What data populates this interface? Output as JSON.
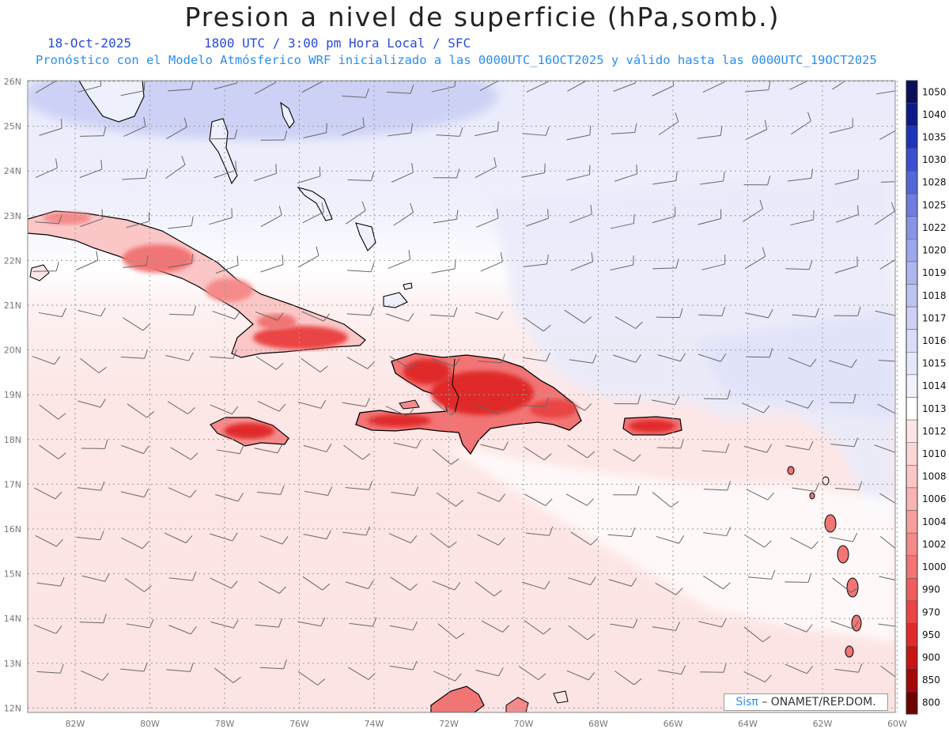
{
  "header": {
    "title": "Presion a nivel de superficie (hPa,somb.)",
    "date": "18-Oct-2025",
    "time_info": "1800 UTC / 3:00 pm Hora Local / SFC",
    "description": "Pronóstico con el Modelo Atmósferico WRF inicializado a las 0000UTC_16OCT2025 y válido hasta las  0000UTC_19OCT2025"
  },
  "map": {
    "lat_labels": [
      "26N",
      "25N",
      "24N",
      "23N",
      "22N",
      "21N",
      "20N",
      "19N",
      "18N",
      "17N",
      "16N",
      "15N",
      "14N",
      "13N",
      "12N"
    ],
    "lon_labels": [
      "82W",
      "80W",
      "78W",
      "76W",
      "74W",
      "72W",
      "70W",
      "68W",
      "66W",
      "64W",
      "62W",
      "60W"
    ],
    "colors": {
      "ocean_south": "#fde6e6",
      "ocean_mid": "#ffffff",
      "ocean_north": "#e9ebfb",
      "high_pressure_core": "#cdd1f5",
      "land_low": "#f03a3a",
      "land_mid": "#f77f7f",
      "land_edge": "#fbb5b5",
      "coastline": "#000000",
      "wind_barb": "#666666",
      "grid": "#999999"
    }
  },
  "colorbar": {
    "levels": [
      "1050",
      "1040",
      "1035",
      "1030",
      "1028",
      "1025",
      "1022",
      "1020",
      "1019",
      "1018",
      "1017",
      "1016",
      "1015",
      "1014",
      "1013",
      "1012",
      "1010",
      "1008",
      "1006",
      "1004",
      "1002",
      "1000",
      "990",
      "970",
      "950",
      "900",
      "850",
      "800"
    ],
    "colors": [
      "#0a0f5c",
      "#0c1a8a",
      "#1f34b8",
      "#3a4fd0",
      "#5566d9",
      "#6e7de0",
      "#8893e6",
      "#9da7eb",
      "#aeb6ef",
      "#bec4f2",
      "#ccd1f5",
      "#d9ddf8",
      "#e5e8fb",
      "#f1f2fd",
      "#ffffff",
      "#fde6e6",
      "#fbd6d6",
      "#fbc6c6",
      "#f9b3b3",
      "#f79f9f",
      "#f58a8a",
      "#f27474",
      "#ef5d5d",
      "#ea4545",
      "#e02a2a",
      "#c81414",
      "#a30808",
      "#6e0000"
    ]
  },
  "credit": {
    "brand": "Sisπ",
    "text": "– ONAMET/REP.DOM."
  }
}
